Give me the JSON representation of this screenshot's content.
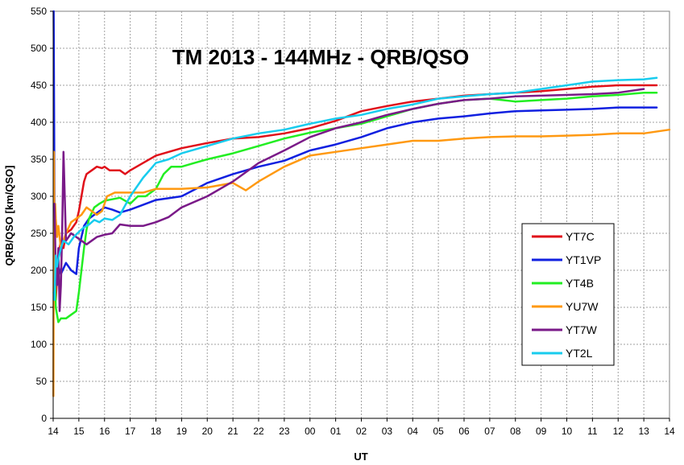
{
  "chart_data": {
    "type": "line",
    "title": "TM 2013 - 144MHz - QRB/QSO",
    "xlabel": "UT",
    "ylabel": "QRB/QSO [km/QSO]",
    "x_ticks": [
      "14",
      "15",
      "16",
      "17",
      "18",
      "19",
      "20",
      "21",
      "22",
      "23",
      "00",
      "01",
      "02",
      "03",
      "04",
      "05",
      "06",
      "07",
      "08",
      "09",
      "10",
      "11",
      "12",
      "13",
      "14"
    ],
    "ylim": [
      0,
      550
    ],
    "y_ticks": [
      0,
      50,
      100,
      150,
      200,
      250,
      300,
      350,
      400,
      450,
      500,
      550
    ],
    "grid": true,
    "legend_position": "right",
    "series": [
      {
        "name": "YT7C",
        "color": "#e0101a",
        "x": [
          0.05,
          0.1,
          0.2,
          0.3,
          0.4,
          0.5,
          0.7,
          0.9,
          1.0,
          1.1,
          1.2,
          1.3,
          1.5,
          1.7,
          1.9,
          2.0,
          2.2,
          2.4,
          2.6,
          2.8,
          3.0,
          3.5,
          4.0,
          5.0,
          6.0,
          7.0,
          8.0,
          9.0,
          10.0,
          11.0,
          12.0,
          13.0,
          14.0,
          15.0,
          16.0,
          17.0,
          18.0,
          19.0,
          20.0,
          21.0,
          22.0,
          23.0,
          23.5
        ],
        "y": [
          180,
          160,
          220,
          240,
          230,
          250,
          255,
          265,
          280,
          300,
          320,
          330,
          335,
          340,
          338,
          340,
          335,
          335,
          335,
          330,
          335,
          345,
          355,
          365,
          372,
          378,
          380,
          385,
          392,
          402,
          415,
          422,
          428,
          432,
          436,
          438,
          440,
          442,
          445,
          448,
          450,
          450,
          450
        ]
      },
      {
        "name": "YT1VP",
        "color": "#1020e0",
        "x": [
          0.02,
          0.04,
          0.06,
          0.1,
          0.15,
          0.3,
          0.5,
          0.7,
          0.9,
          1.0,
          1.2,
          1.4,
          1.6,
          1.8,
          2.0,
          2.3,
          2.6,
          3.0,
          4.0,
          5.0,
          6.0,
          7.0,
          8.0,
          9.0,
          10.0,
          11.0,
          12.0,
          13.0,
          14.0,
          15.0,
          16.0,
          17.0,
          18.0,
          19.0,
          20.0,
          21.0,
          22.0,
          23.0,
          23.5
        ],
        "y": [
          550,
          380,
          220,
          190,
          210,
          195,
          210,
          200,
          195,
          230,
          260,
          270,
          275,
          280,
          285,
          282,
          278,
          282,
          295,
          300,
          318,
          330,
          340,
          348,
          362,
          370,
          380,
          392,
          400,
          405,
          408,
          412,
          415,
          416,
          417,
          418,
          420,
          420,
          420
        ]
      },
      {
        "name": "YT4B",
        "color": "#22ee22",
        "x": [
          0.05,
          0.1,
          0.2,
          0.3,
          0.5,
          0.7,
          0.9,
          1.0,
          1.1,
          1.2,
          1.3,
          1.4,
          1.6,
          1.8,
          2.0,
          2.3,
          2.6,
          3.0,
          3.3,
          3.6,
          4.0,
          4.3,
          4.6,
          5.0,
          5.5,
          6.0,
          7.0,
          8.0,
          9.0,
          10.0,
          11.0,
          12.0,
          13.0,
          14.0,
          15.0,
          16.0,
          17.0,
          18.0,
          19.0,
          20.0,
          21.0,
          22.0,
          23.0,
          23.5
        ],
        "y": [
          225,
          150,
          130,
          135,
          135,
          140,
          145,
          170,
          200,
          230,
          255,
          270,
          285,
          290,
          294,
          296,
          298,
          290,
          300,
          300,
          310,
          330,
          340,
          340,
          345,
          350,
          358,
          368,
          378,
          386,
          392,
          398,
          408,
          418,
          425,
          430,
          432,
          428,
          430,
          432,
          435,
          437,
          440,
          440
        ]
      },
      {
        "name": "YU7W",
        "color": "#ff9911",
        "x": [
          0.01,
          0.03,
          0.05,
          0.08,
          0.1,
          0.15,
          0.2,
          0.3,
          0.5,
          0.7,
          0.9,
          1.1,
          1.3,
          1.5,
          1.7,
          1.9,
          2.1,
          2.4,
          2.7,
          3.0,
          3.5,
          4.0,
          5.0,
          6.0,
          7.0,
          7.5,
          8.0,
          9.0,
          10.0,
          11.0,
          12.0,
          13.0,
          14.0,
          15.0,
          16.0,
          17.0,
          18.0,
          19.0,
          20.0,
          21.0,
          22.0,
          23.0,
          24.0
        ],
        "y": [
          30,
          360,
          250,
          290,
          270,
          245,
          260,
          230,
          250,
          265,
          270,
          275,
          285,
          280,
          275,
          280,
          300,
          305,
          305,
          305,
          305,
          310,
          310,
          312,
          318,
          308,
          320,
          340,
          355,
          360,
          365,
          370,
          375,
          375,
          378,
          380,
          381,
          381,
          382,
          383,
          385,
          385,
          390
        ]
      },
      {
        "name": "YT7W",
        "color": "#7a1a88",
        "x": [
          0.05,
          0.1,
          0.15,
          0.2,
          0.25,
          0.3,
          0.35,
          0.4,
          0.5,
          0.7,
          0.9,
          1.1,
          1.3,
          1.5,
          1.7,
          2.0,
          2.3,
          2.6,
          3.0,
          3.5,
          4.0,
          4.5,
          5.0,
          6.0,
          7.0,
          8.0,
          9.0,
          10.0,
          11.0,
          12.0,
          13.0,
          14.0,
          15.0,
          16.0,
          17.0,
          18.0,
          19.0,
          20.0,
          21.0,
          22.0,
          23.0
        ],
        "y": [
          290,
          200,
          180,
          230,
          145,
          180,
          255,
          360,
          240,
          250,
          245,
          240,
          235,
          240,
          245,
          248,
          250,
          262,
          260,
          260,
          265,
          272,
          285,
          300,
          320,
          345,
          362,
          380,
          392,
          400,
          410,
          418,
          425,
          430,
          432,
          435,
          436,
          437,
          438,
          440,
          445
        ]
      },
      {
        "name": "YT2L",
        "color": "#18ccee",
        "x": [
          0.02,
          0.05,
          0.1,
          0.15,
          0.2,
          0.3,
          0.4,
          0.6,
          0.8,
          1.0,
          1.2,
          1.4,
          1.6,
          1.8,
          2.0,
          2.3,
          2.6,
          3.0,
          3.5,
          4.0,
          4.5,
          5.0,
          6.0,
          7.0,
          8.0,
          9.0,
          10.0,
          11.0,
          12.0,
          13.0,
          14.0,
          15.0,
          16.0,
          17.0,
          18.0,
          19.0,
          20.0,
          21.0,
          22.0,
          23.0,
          23.5
        ],
        "y": [
          170,
          160,
          220,
          205,
          215,
          230,
          240,
          235,
          245,
          252,
          258,
          262,
          268,
          265,
          270,
          268,
          275,
          300,
          325,
          345,
          350,
          358,
          368,
          378,
          385,
          390,
          398,
          405,
          410,
          418,
          424,
          432,
          435,
          438,
          440,
          445,
          450,
          455,
          457,
          458,
          460
        ]
      }
    ]
  }
}
